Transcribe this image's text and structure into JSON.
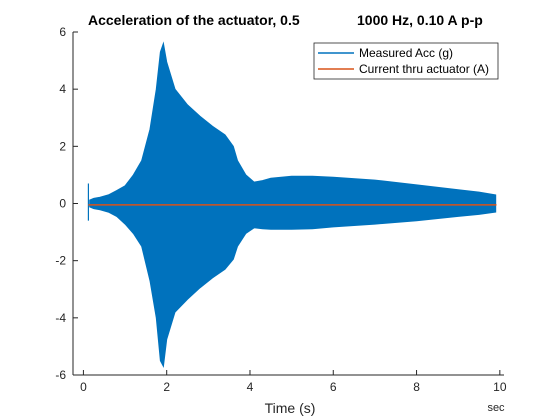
{
  "chart_data": {
    "type": "line",
    "title_left": "Acceleration of the actuator, 0.5",
    "title_right": "1000 Hz, 0.10 A p-p",
    "xlabel": "Time (s)",
    "x_unit_label": "sec",
    "xlim": [
      -0.25,
      10.1
    ],
    "ylim": [
      -6,
      6
    ],
    "xticks": [
      0,
      2,
      4,
      6,
      8,
      10
    ],
    "yticks": [
      -6,
      -4,
      -2,
      0,
      2,
      4,
      6
    ],
    "grid": false,
    "legend_position": "top-right",
    "series": [
      {
        "name": "Measured Acc (g)",
        "color": "#0072BD",
        "style": "envelope",
        "x": [
          0.15,
          0.25,
          0.4,
          0.6,
          0.8,
          1.0,
          1.2,
          1.4,
          1.6,
          1.75,
          1.85,
          1.92,
          2.0,
          2.2,
          2.5,
          2.8,
          3.1,
          3.4,
          3.6,
          3.7,
          3.9,
          4.1,
          4.3,
          4.5,
          5.0,
          5.5,
          6.0,
          7.0,
          8.0,
          9.0,
          9.5,
          9.9
        ],
        "upper": [
          0.12,
          0.18,
          0.22,
          0.3,
          0.45,
          0.62,
          1.0,
          1.5,
          2.6,
          4.0,
          5.3,
          5.6,
          4.95,
          4.0,
          3.45,
          3.05,
          2.7,
          2.4,
          2.0,
          1.5,
          1.0,
          0.75,
          0.8,
          0.88,
          0.95,
          0.95,
          0.92,
          0.82,
          0.65,
          0.48,
          0.4,
          0.3
        ],
        "lower": [
          -0.12,
          -0.18,
          -0.22,
          -0.3,
          -0.45,
          -0.72,
          -1.05,
          -1.5,
          -2.7,
          -4.0,
          -5.5,
          -5.7,
          -4.75,
          -3.8,
          -3.35,
          -2.95,
          -2.6,
          -2.3,
          -1.95,
          -1.5,
          -1.05,
          -0.85,
          -0.88,
          -0.9,
          -0.9,
          -0.88,
          -0.82,
          -0.72,
          -0.6,
          -0.45,
          -0.38,
          -0.3
        ],
        "spike": {
          "x": 0.12,
          "ymin": -0.6,
          "ymax": 0.7
        }
      },
      {
        "name": "Current thru actuator (A)",
        "color": "#D95319",
        "style": "line",
        "x": [
          0.12,
          9.92
        ],
        "y": [
          -0.05,
          -0.05
        ]
      }
    ]
  }
}
